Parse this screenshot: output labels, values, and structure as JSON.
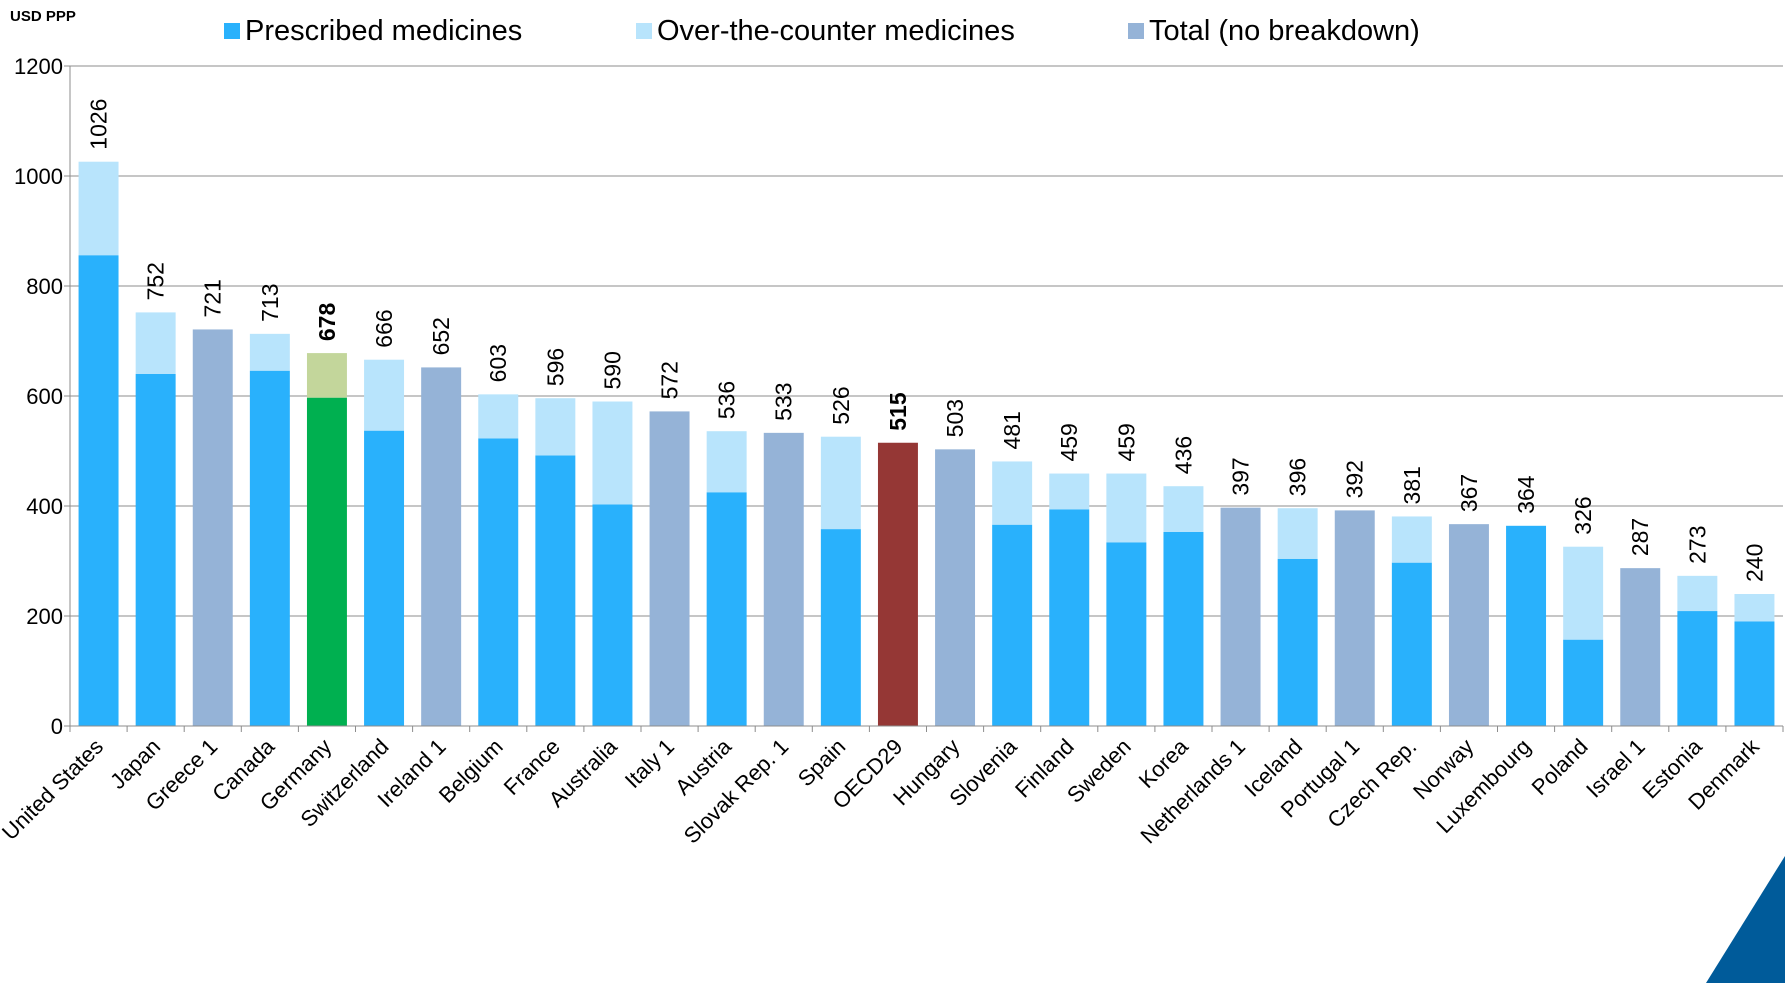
{
  "chart_data": {
    "type": "bar",
    "stacked": true,
    "ylabel": "USD PPP",
    "ylim": [
      0,
      1200
    ],
    "yticks": [
      0,
      200,
      400,
      600,
      800,
      1000,
      1200
    ],
    "grid": true,
    "legend_position": "top",
    "categories": [
      "United States",
      "Japan",
      "Greece 1",
      "Canada",
      "Germany",
      "Switzerland",
      "Ireland 1",
      "Belgium",
      "France",
      "Australia",
      "Italy 1",
      "Austria",
      "Slovak Rep. 1",
      "Spain",
      "OECD29",
      "Hungary",
      "Slovenia",
      "Finland",
      "Sweden",
      "Korea",
      "Netherlands 1",
      "Iceland",
      "Portugal 1",
      "Czech Rep.",
      "Norway",
      "Luxembourg",
      "Poland",
      "Israel 1",
      "Estonia",
      "Denmark"
    ],
    "series": [
      {
        "name": "Prescribed medicines",
        "color": "#29b1fc",
        "values": [
          856,
          640,
          0,
          646,
          597,
          537,
          0,
          523,
          492,
          403,
          0,
          425,
          0,
          358,
          0,
          0,
          366,
          394,
          334,
          353,
          0,
          304,
          0,
          297,
          0,
          364,
          157,
          0,
          209,
          190
        ]
      },
      {
        "name": "Over-the-counter medicines",
        "color": "#b8e4fc",
        "values": [
          170,
          112,
          0,
          67,
          81,
          129,
          0,
          80,
          104,
          187,
          0,
          111,
          0,
          168,
          0,
          0,
          115,
          65,
          125,
          83,
          0,
          92,
          0,
          84,
          0,
          0,
          169,
          0,
          64,
          50
        ]
      },
      {
        "name": "Total (no breakdown)",
        "color": "#95b3d7",
        "values": [
          0,
          0,
          721,
          0,
          0,
          0,
          652,
          0,
          0,
          0,
          572,
          0,
          533,
          0,
          515,
          503,
          0,
          0,
          0,
          0,
          397,
          0,
          392,
          0,
          367,
          0,
          0,
          287,
          0,
          0
        ]
      }
    ],
    "totals": [
      "1026",
      "752",
      "721",
      "713",
      "678",
      "666",
      "652",
      "603",
      "596",
      "590",
      "572",
      "536",
      "533",
      "526",
      "515",
      "503",
      "481",
      "459",
      "459",
      "436",
      "397",
      "396",
      "392",
      "381",
      "367",
      "364",
      "326",
      "287",
      "273",
      "240"
    ],
    "bold_totals": [
      "Germany",
      "OECD29"
    ],
    "highlight_colors": {
      "Germany": {
        "prescribed": "#00b050",
        "otc": "#c3d69b"
      },
      "OECD29": {
        "total": "#953735"
      }
    },
    "corner_accent_color": "#005b9a"
  }
}
